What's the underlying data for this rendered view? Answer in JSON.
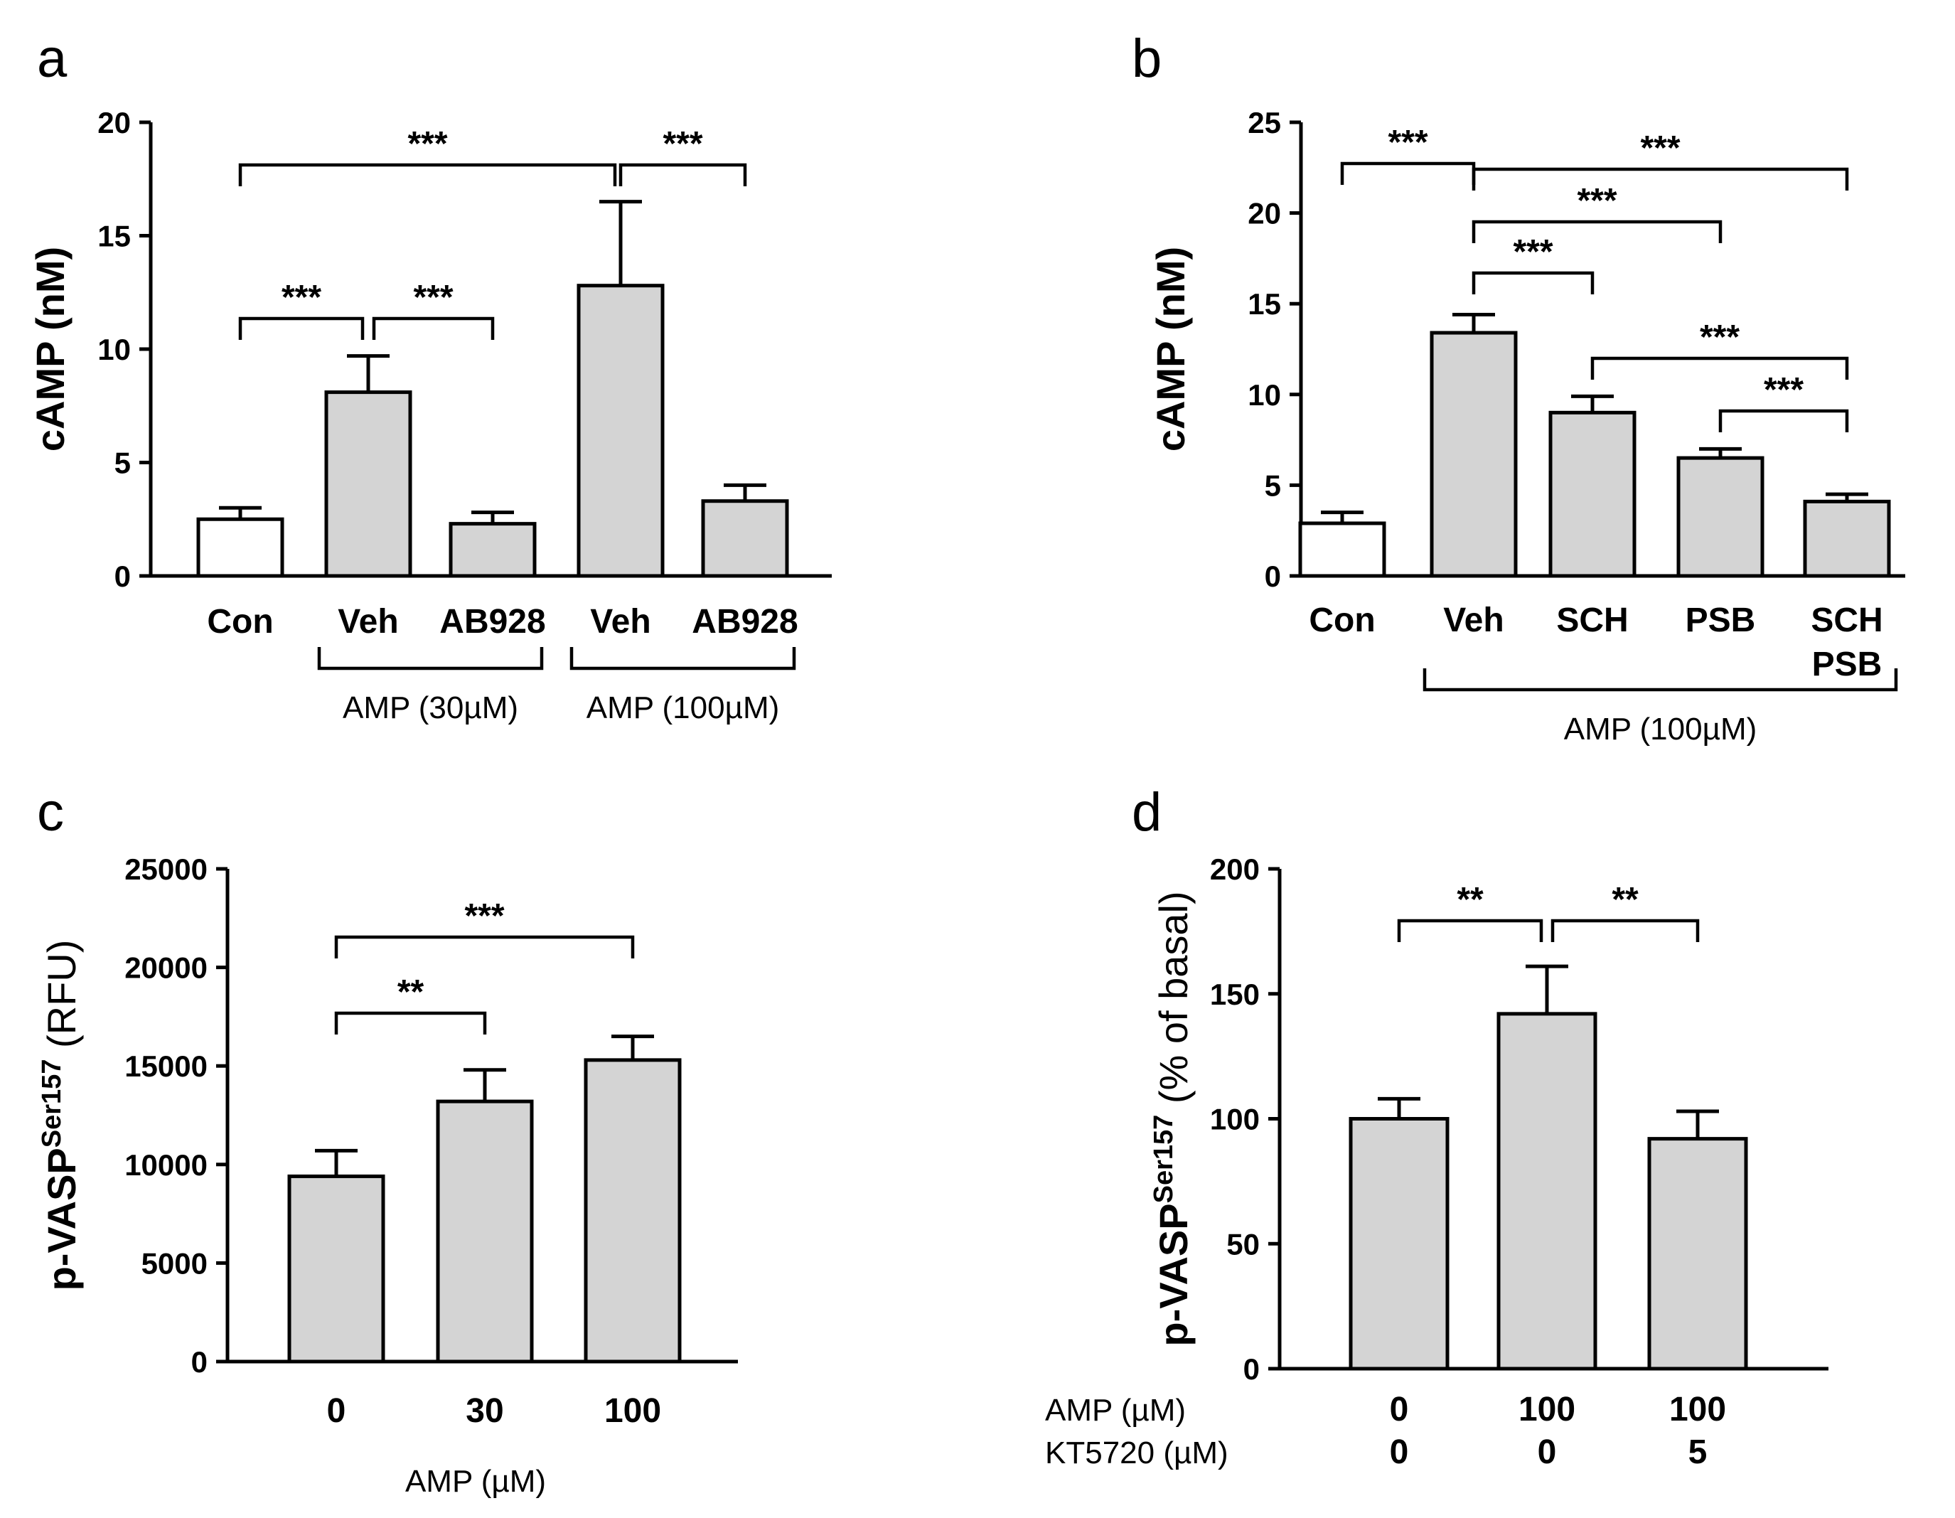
{
  "colors": {
    "bar_fill": "#d4d4d4",
    "control_fill": "#ffffff",
    "ink": "#000000"
  },
  "chart_data": [
    {
      "panel": "a",
      "type": "bar",
      "ylabel": "cAMP (nM)",
      "yticks": [
        "0",
        "5",
        "10",
        "15",
        "20"
      ],
      "ylim": [
        0,
        20
      ],
      "categories": [
        "Con",
        "Veh",
        "AB928",
        "Veh",
        "AB928"
      ],
      "values": [
        2.5,
        8.1,
        2.3,
        12.8,
        3.3
      ],
      "errors": [
        0.5,
        1.6,
        0.5,
        3.7,
        0.7
      ],
      "groups": [
        {
          "label": "AMP (30µM)",
          "from": 1,
          "to": 2
        },
        {
          "label": "AMP (100µM)",
          "from": 3,
          "to": 4
        }
      ],
      "comparisons": [
        {
          "a": 0,
          "b": 3,
          "label": "***"
        },
        {
          "a": 3,
          "b": 4,
          "label": "***"
        },
        {
          "a": 0,
          "b": 1,
          "label": "***"
        },
        {
          "a": 1,
          "b": 2,
          "label": "***"
        }
      ]
    },
    {
      "panel": "b",
      "type": "bar",
      "ylabel": "cAMP (nM)",
      "yticks": [
        "0",
        "5",
        "10",
        "15",
        "20",
        "25"
      ],
      "ylim": [
        0,
        25
      ],
      "categories": [
        "Con",
        "Veh",
        "SCH",
        "PSB",
        "SCH\nPSB"
      ],
      "values": [
        2.9,
        13.4,
        9.0,
        6.5,
        4.1
      ],
      "errors": [
        0.6,
        1.0,
        0.9,
        0.5,
        0.4
      ],
      "groups": [
        {
          "label": "AMP (100µM)",
          "from": 1,
          "to": 4
        }
      ],
      "comparisons": [
        {
          "a": 0,
          "b": 1,
          "label": "***"
        },
        {
          "a": 1,
          "b": 4,
          "label": "***"
        },
        {
          "a": 1,
          "b": 3,
          "label": "***"
        },
        {
          "a": 1,
          "b": 2,
          "label": "***"
        },
        {
          "a": 2,
          "b": 4,
          "label": "***"
        },
        {
          "a": 3,
          "b": 4,
          "label": "***"
        }
      ]
    },
    {
      "panel": "c",
      "type": "bar",
      "ylabel": "p-VASP",
      "ylabel_sup": "Ser157",
      "ylabel_suffix": " (RFU)",
      "yticks": [
        "0",
        "5000",
        "10000",
        "15000",
        "20000",
        "25000"
      ],
      "ylim": [
        0,
        25000
      ],
      "categories": [
        "0",
        "30",
        "100"
      ],
      "values": [
        9400,
        13200,
        15300
      ],
      "errors": [
        1300,
        1600,
        1200
      ],
      "xlabel": "AMP (µM)",
      "comparisons": [
        {
          "a": 0,
          "b": 2,
          "label": "***"
        },
        {
          "a": 0,
          "b": 1,
          "label": "**"
        }
      ]
    },
    {
      "panel": "d",
      "type": "bar",
      "ylabel": "p-VASP",
      "ylabel_sup": "Ser157",
      "ylabel_suffix": " (% of basal)",
      "yticks": [
        "0",
        "50",
        "100",
        "150",
        "200"
      ],
      "ylim": [
        0,
        200
      ],
      "categories": [
        "",
        "",
        ""
      ],
      "values": [
        100,
        142,
        92
      ],
      "errors": [
        8,
        19,
        11
      ],
      "row_labels": [
        {
          "label": "AMP (µM)",
          "values": [
            "0",
            "100",
            "100"
          ]
        },
        {
          "label": "KT5720 (µM)",
          "values": [
            "0",
            "0",
            "5"
          ]
        }
      ],
      "comparisons": [
        {
          "a": 0,
          "b": 1,
          "label": "**"
        },
        {
          "a": 1,
          "b": 2,
          "label": "**"
        }
      ]
    }
  ]
}
